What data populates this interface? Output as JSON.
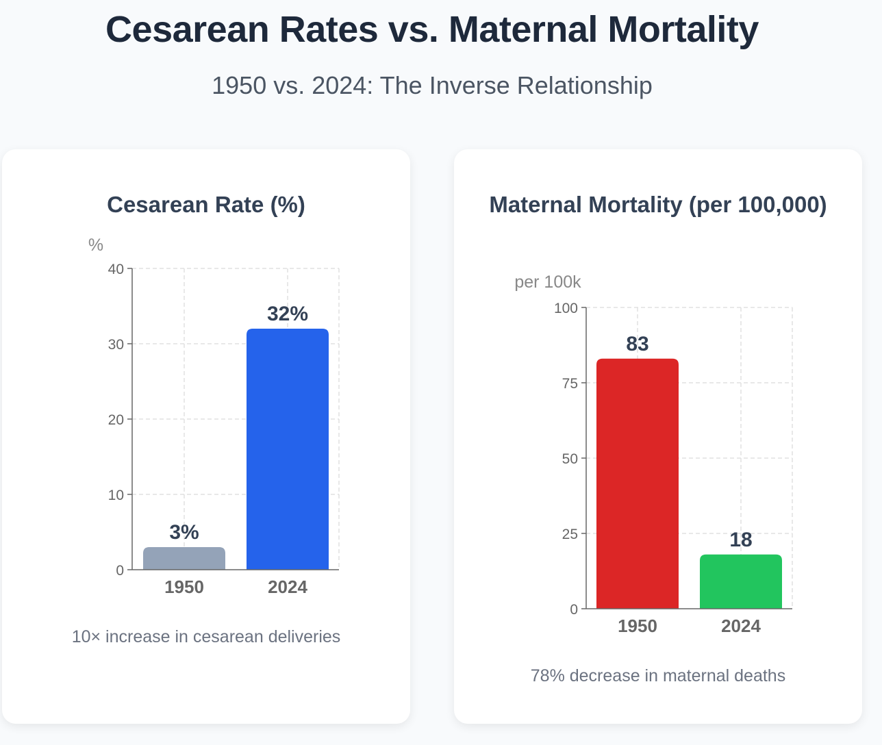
{
  "header": {
    "title": "Cesarean Rates vs. Maternal Mortality",
    "subtitle": "1950 vs. 2024: The Inverse Relationship"
  },
  "chart_data": [
    {
      "type": "bar",
      "title": "Cesarean Rate (%)",
      "ylabel": "%",
      "categories": [
        "1950",
        "2024"
      ],
      "values": [
        3,
        32
      ],
      "value_labels": [
        "3%",
        "32%"
      ],
      "colors": [
        "#94a3b8",
        "#2563eb"
      ],
      "ylim": [
        0,
        40
      ],
      "yticks": [
        0,
        10,
        20,
        30,
        40
      ],
      "grid": true,
      "caption": "10× increase in cesarean deliveries"
    },
    {
      "type": "bar",
      "title": "Maternal Mortality (per 100,000)",
      "ylabel": "per 100k",
      "categories": [
        "1950",
        "2024"
      ],
      "values": [
        83,
        18
      ],
      "value_labels": [
        "83",
        "18"
      ],
      "colors": [
        "#dc2626",
        "#22c55e"
      ],
      "ylim": [
        0,
        100
      ],
      "yticks": [
        0,
        25,
        50,
        75,
        100
      ],
      "grid": true,
      "caption": "78% decrease in maternal deaths"
    }
  ]
}
